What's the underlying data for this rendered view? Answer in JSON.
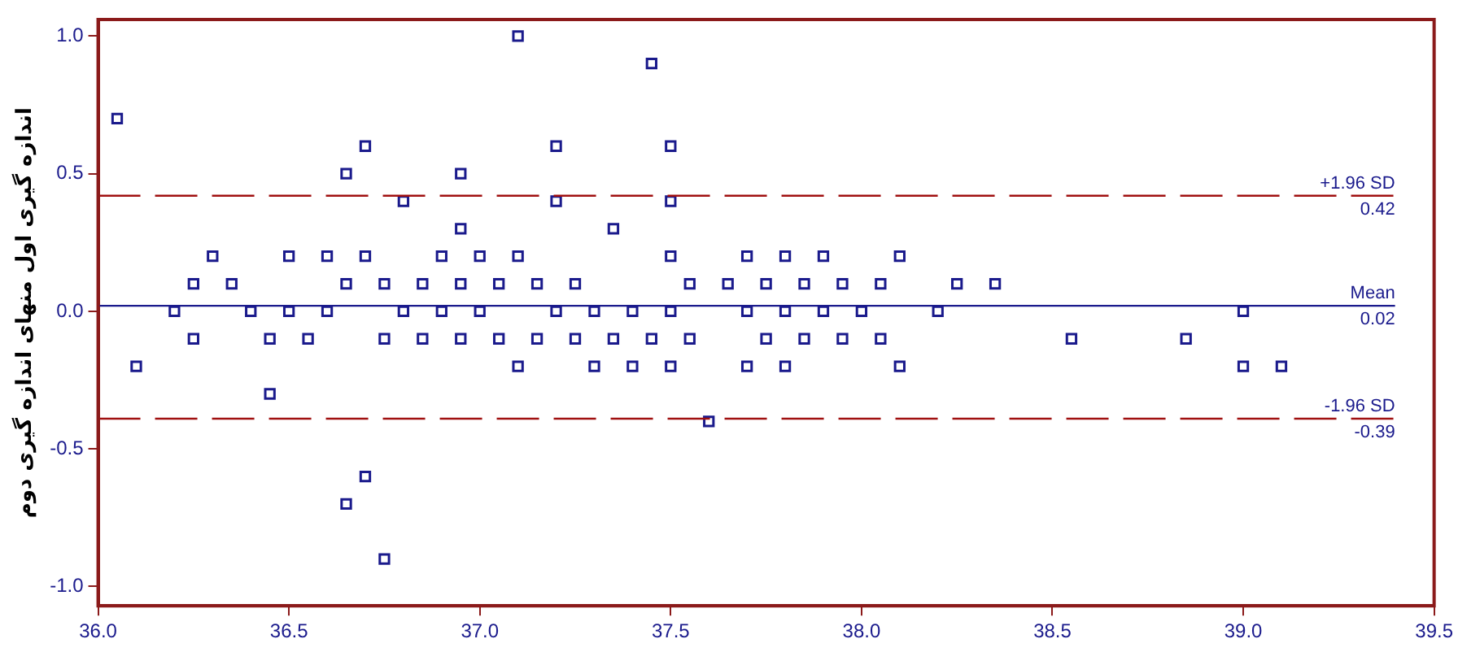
{
  "chart_data": {
    "type": "scatter",
    "ylabel": "اندازه گیری اول منهای اندازه گیری دوم",
    "x": [
      37.1,
      37.45,
      36.05,
      36.7,
      37.2,
      37.5,
      36.65,
      36.95,
      36.8,
      37.2,
      37.5,
      36.95,
      37.35,
      36.3,
      36.5,
      36.6,
      36.7,
      36.9,
      37.0,
      37.1,
      37.5,
      37.7,
      37.8,
      37.9,
      38.1,
      36.25,
      36.35,
      36.65,
      36.75,
      36.85,
      36.95,
      37.05,
      37.15,
      37.25,
      37.55,
      37.65,
      37.75,
      37.85,
      37.95,
      38.05,
      38.25,
      38.35,
      36.2,
      36.4,
      36.5,
      36.6,
      36.8,
      36.9,
      37.0,
      37.2,
      37.3,
      37.4,
      37.5,
      37.7,
      37.8,
      37.9,
      38.0,
      38.2,
      39.0,
      36.25,
      36.45,
      36.55,
      36.75,
      36.85,
      36.95,
      37.05,
      37.15,
      37.25,
      37.35,
      37.45,
      37.55,
      37.75,
      37.85,
      37.95,
      38.05,
      38.55,
      38.85,
      36.1,
      37.1,
      37.3,
      37.4,
      37.5,
      37.7,
      37.8,
      38.1,
      39.0,
      39.1,
      36.45,
      37.6,
      36.7,
      36.65,
      36.75
    ],
    "values": [
      1.0,
      0.9,
      0.7,
      0.6,
      0.6,
      0.6,
      0.5,
      0.5,
      0.4,
      0.4,
      0.4,
      0.3,
      0.3,
      0.2,
      0.2,
      0.2,
      0.2,
      0.2,
      0.2,
      0.2,
      0.2,
      0.2,
      0.2,
      0.2,
      0.2,
      0.1,
      0.1,
      0.1,
      0.1,
      0.1,
      0.1,
      0.1,
      0.1,
      0.1,
      0.1,
      0.1,
      0.1,
      0.1,
      0.1,
      0.1,
      0.1,
      0.1,
      0.0,
      0.0,
      0.0,
      0.0,
      0.0,
      0.0,
      0.0,
      0.0,
      0.0,
      0.0,
      0.0,
      0.0,
      0.0,
      0.0,
      0.0,
      0.0,
      0.0,
      -0.1,
      -0.1,
      -0.1,
      -0.1,
      -0.1,
      -0.1,
      -0.1,
      -0.1,
      -0.1,
      -0.1,
      -0.1,
      -0.1,
      -0.1,
      -0.1,
      -0.1,
      -0.1,
      -0.1,
      -0.1,
      -0.2,
      -0.2,
      -0.2,
      -0.2,
      -0.2,
      -0.2,
      -0.2,
      -0.2,
      -0.2,
      -0.2,
      -0.3,
      -0.4,
      -0.6,
      -0.7,
      -0.9
    ],
    "color": "#1a1a8c",
    "marker": "square",
    "xlim": [
      36.0,
      39.5
    ],
    "xticks": [
      {
        "value": 36,
        "label": "36.0"
      },
      36.5,
      {
        "value": 37,
        "label": "37.0"
      },
      37.5,
      {
        "value": 38,
        "label": "38.0"
      },
      38.5,
      {
        "value": 39,
        "label": "39.0"
      },
      39.5
    ],
    "ylim": [
      -1.07,
      1.06
    ],
    "yticks": [
      {
        "value": -1,
        "label": "-1.0"
      },
      -0.5,
      {
        "value": 0,
        "label": "0.0"
      },
      0.5,
      {
        "value": 1,
        "label": "1.0"
      }
    ],
    "ref_lines": [
      {
        "axis": "y",
        "value": 0.42,
        "label": "+1.96 SD",
        "color": "#a01010",
        "line_style": "dashed"
      },
      {
        "axis": "y",
        "value": 0.02,
        "label": "Mean",
        "color": "#1a1a8c",
        "line_style": "solid"
      },
      {
        "axis": "y",
        "value": -0.39,
        "label": "-1.96 SD",
        "color": "#a01010",
        "line_style": "dashed"
      }
    ],
    "annotations": [
      "0.42",
      "0.02",
      "-0.39"
    ],
    "grid": false
  }
}
